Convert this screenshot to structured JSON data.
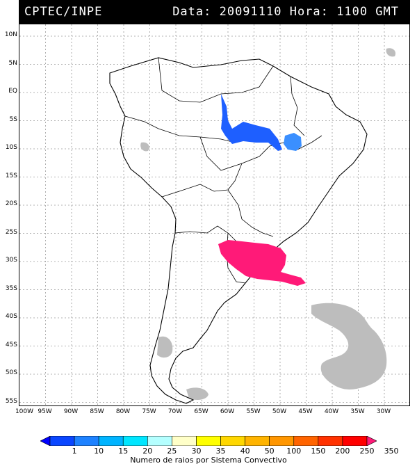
{
  "header": {
    "organization": "CPTEC/INPE",
    "datetime": "Data: 20091110 Hora: 1100 GMT"
  },
  "map": {
    "lat_labels": [
      "10N",
      "5N",
      "EQ",
      "5S",
      "10S",
      "15S",
      "20S",
      "25S",
      "30S",
      "35S",
      "40S",
      "45S",
      "50S",
      "55S"
    ],
    "lon_labels": [
      "100W",
      "95W",
      "90W",
      "85W",
      "80W",
      "75W",
      "70W",
      "65W",
      "60W",
      "55W",
      "50W",
      "45W",
      "40W",
      "35W",
      "30W"
    ],
    "colors": {
      "land_outline": "#000000",
      "grid": "#9a9a9a",
      "cloud_gray": "#bdbdbd",
      "amazon_system": "#1e5fff",
      "northeast_system": "#3a8fff",
      "south_system": "#ff1a78"
    }
  },
  "legend": {
    "caption": "Numero de raios por Sistema Convectivo",
    "labels": [
      "1",
      "10",
      "15",
      "20",
      "25",
      "30",
      "35",
      "40",
      "50",
      "100",
      "150",
      "200",
      "250",
      "350"
    ],
    "colors": [
      "#0000ff",
      "#0a46ff",
      "#1e82ff",
      "#00b4ff",
      "#00e6ff",
      "#b4ffff",
      "#ffffc8",
      "#ffff00",
      "#ffd700",
      "#ffb400",
      "#ff9600",
      "#ff6400",
      "#ff3200",
      "#ff0000",
      "#ff1a78"
    ]
  }
}
